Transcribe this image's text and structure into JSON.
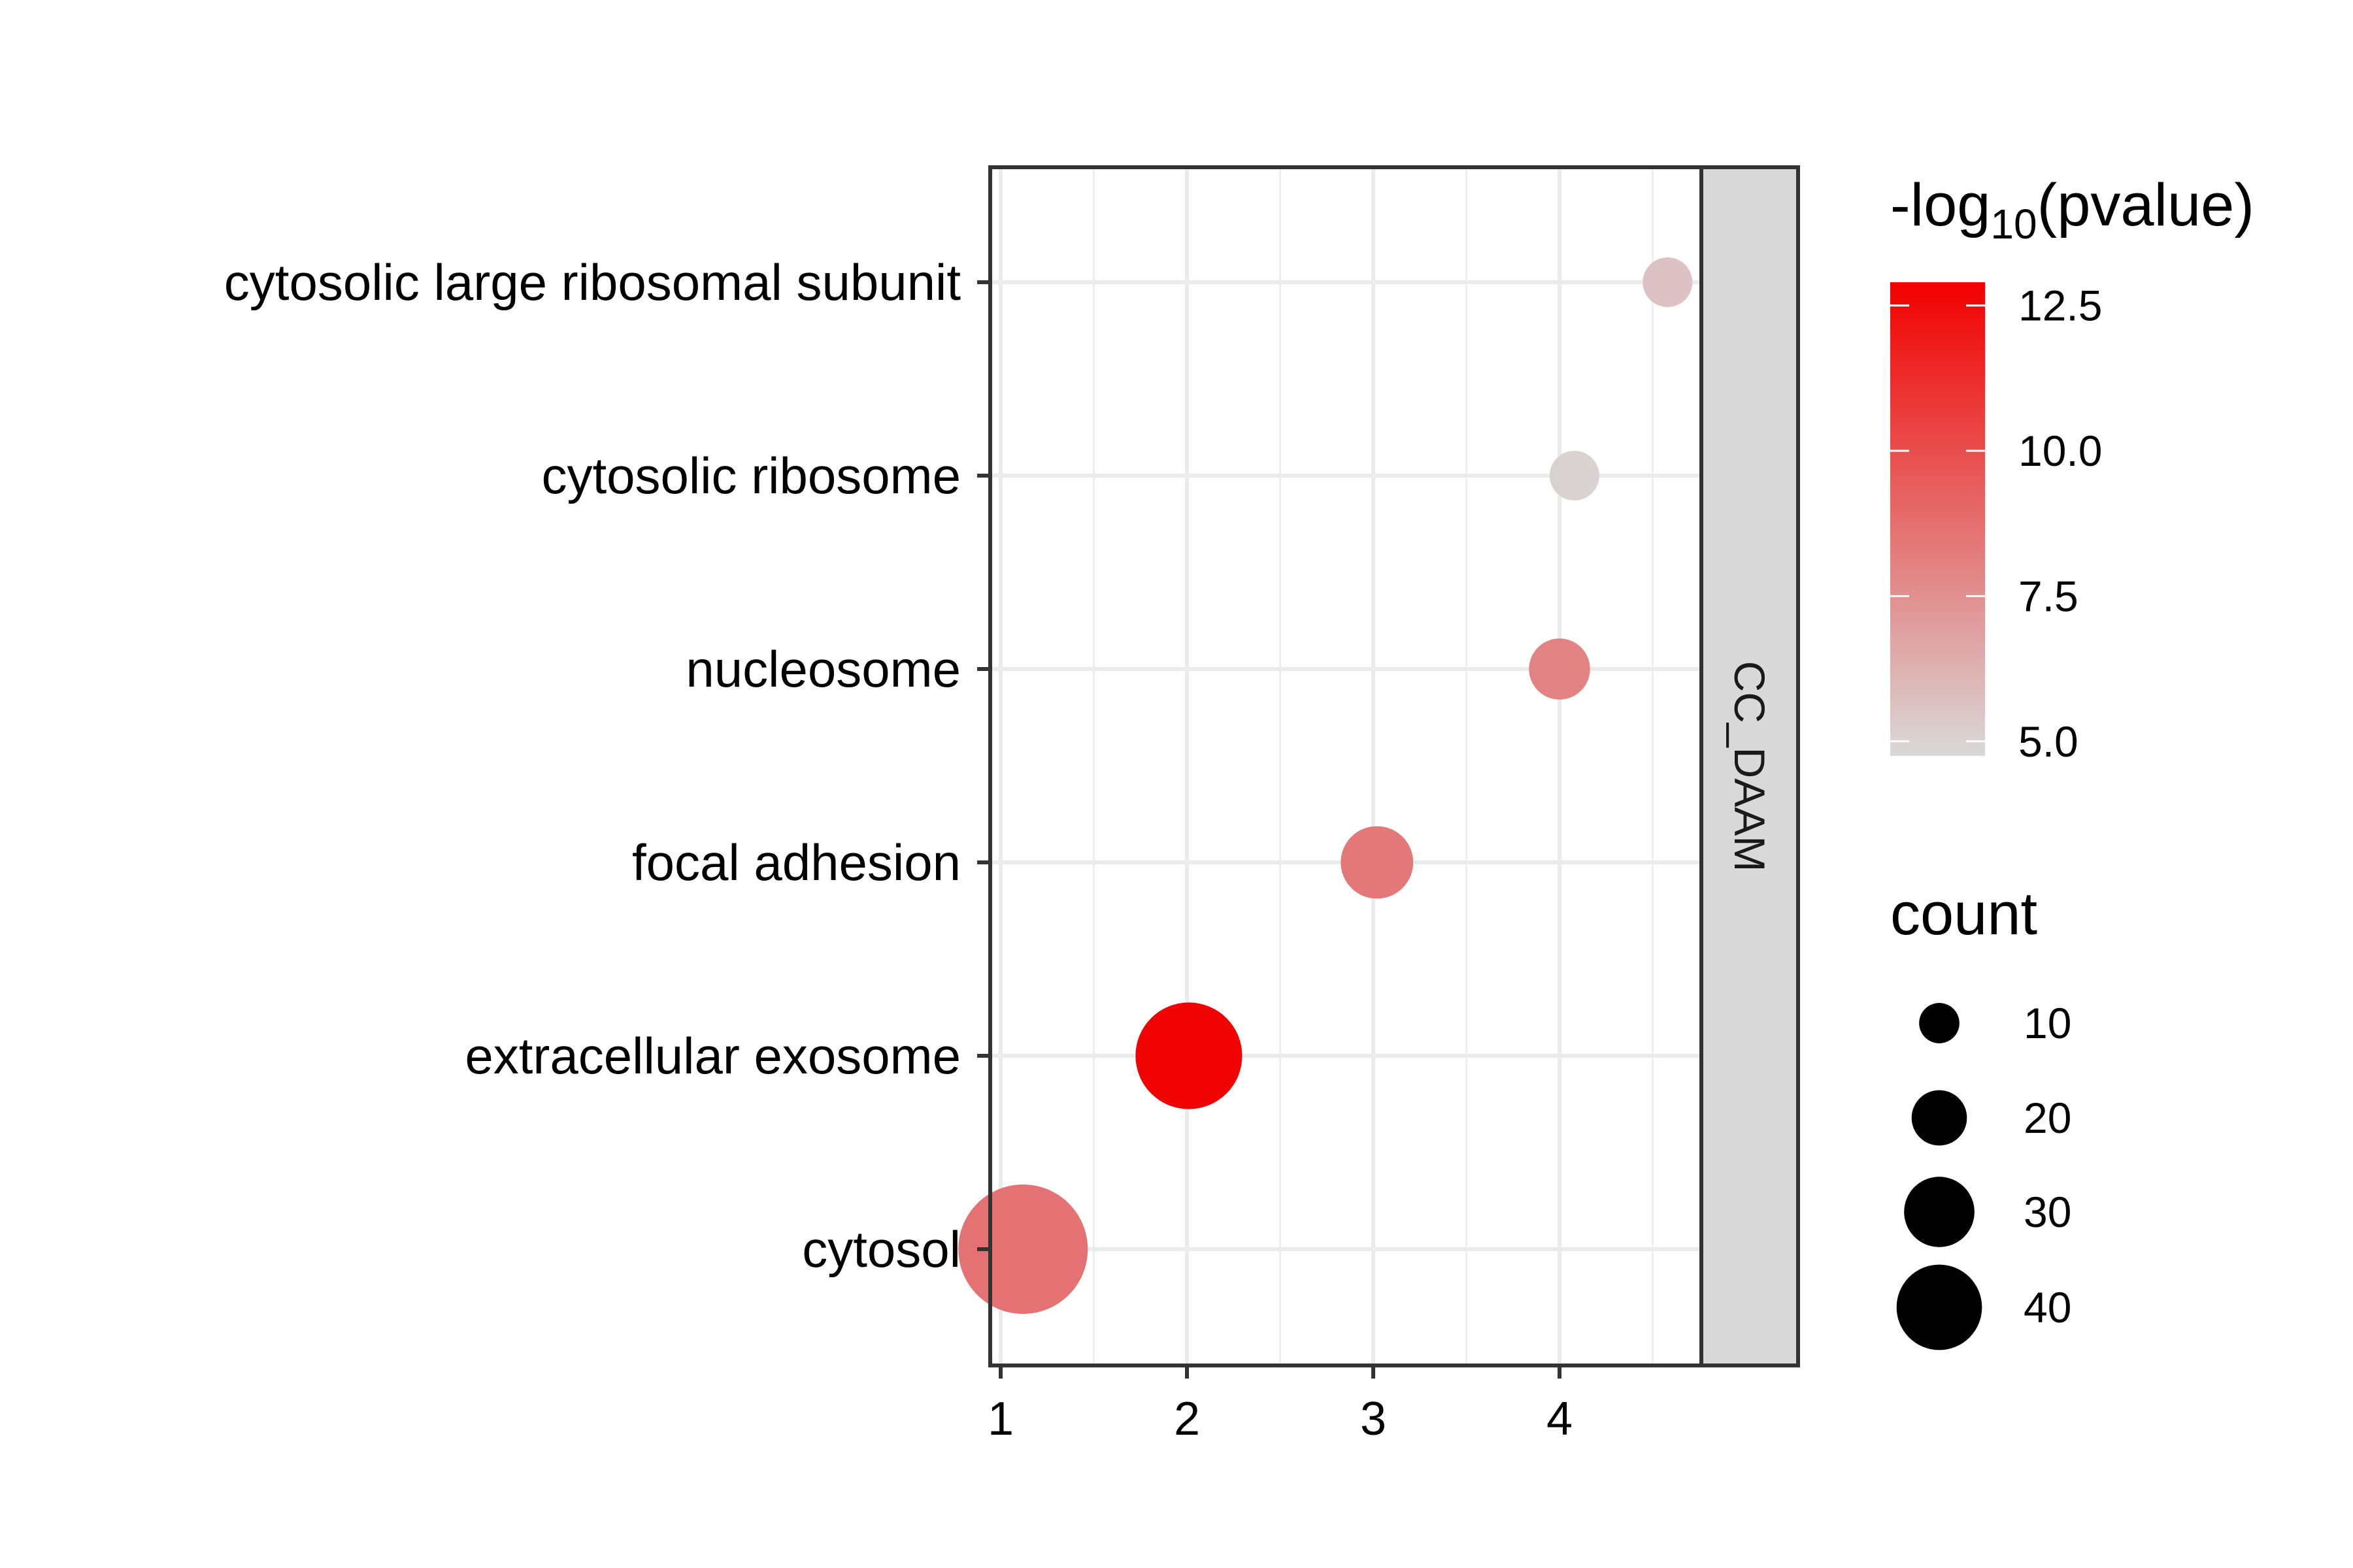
{
  "chart_data": {
    "type": "scatter",
    "title": "",
    "xlabel": "",
    "ylabel": "",
    "xlim": [
      0.95,
      4.75
    ],
    "x_ticks": [
      "1",
      "2",
      "3",
      "4"
    ],
    "x_tick_values": [
      1,
      2,
      3,
      4
    ],
    "categories": [
      "cytosolic large ribosomal subunit",
      "cytosolic ribosome",
      "nucleosome",
      "focal adhesion",
      "extracellular exosome",
      "cytosol"
    ],
    "points": [
      {
        "category": "cytosolic large ribosomal subunit",
        "x": 4.58,
        "neg_log10_pvalue": 5.6,
        "count": 5
      },
      {
        "category": "cytosolic ribosome",
        "x": 4.08,
        "neg_log10_pvalue": 5.0,
        "count": 5
      },
      {
        "category": "nucleosome",
        "x": 4.0,
        "neg_log10_pvalue": 8.0,
        "count": 10
      },
      {
        "category": "focal adhesion",
        "x": 3.02,
        "neg_log10_pvalue": 8.4,
        "count": 15
      },
      {
        "category": "extracellular exosome",
        "x": 2.01,
        "neg_log10_pvalue": 12.8,
        "count": 30
      },
      {
        "category": "cytosol",
        "x": 1.12,
        "neg_log10_pvalue": 8.6,
        "count": 40
      }
    ],
    "facet_label": "CC_DAAM",
    "grid": true,
    "legend_position": "right",
    "color_legend": {
      "title_prefix": "-log",
      "title_subscript": "10",
      "title_suffix": "(pvalue)",
      "range": [
        4.75,
        12.9
      ],
      "ticks": [
        "12.5",
        "10.0",
        "7.5",
        "5.0"
      ],
      "tick_values": [
        12.5,
        10.0,
        7.5,
        5.0
      ],
      "low_color": "#d9d9d9",
      "high_color": "#f20000"
    },
    "size_legend": {
      "title": "count",
      "labels": [
        "10",
        "20",
        "30",
        "40"
      ],
      "values": [
        10,
        20,
        30,
        40
      ]
    }
  }
}
